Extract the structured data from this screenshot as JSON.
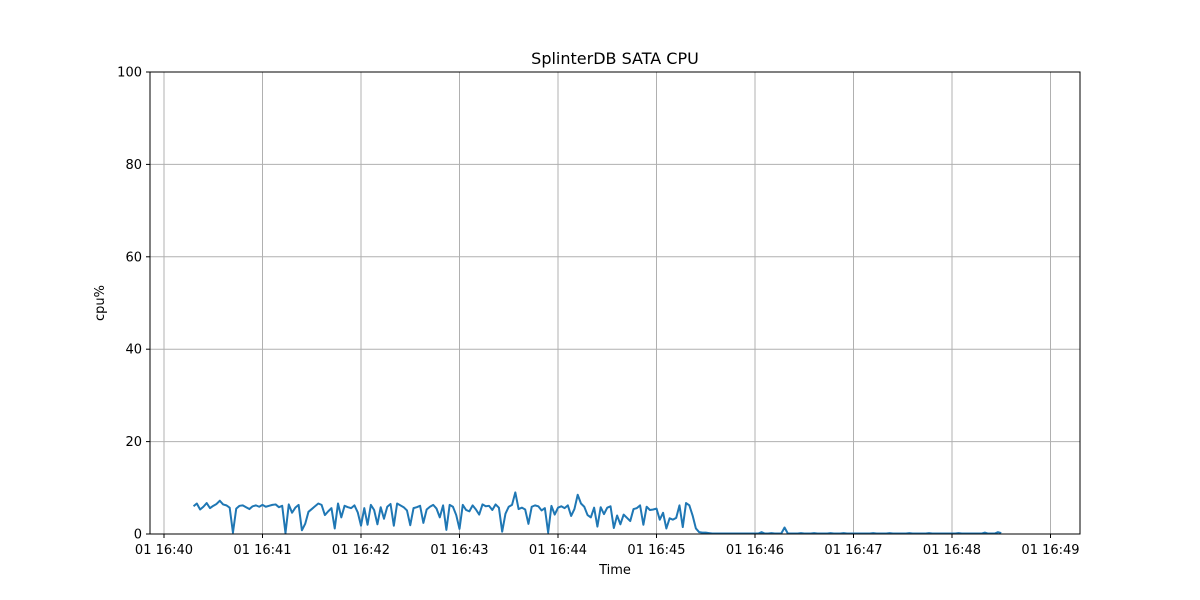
{
  "chart_data": {
    "type": "line",
    "title": "SplinterDB SATA CPU",
    "xlabel": "Time",
    "ylabel": "cpu%",
    "x_ticks": [
      "01 16:40",
      "01 16:41",
      "01 16:42",
      "01 16:43",
      "01 16:44",
      "01 16:45",
      "01 16:46",
      "01 16:47",
      "01 16:48",
      "01 16:49"
    ],
    "y_ticks": [
      "0",
      "20",
      "40",
      "60",
      "80",
      "100"
    ],
    "ylim": [
      0,
      100
    ],
    "grid": true,
    "legend": "none",
    "series": [
      {
        "color": "#1f77b4",
        "x_start": "01 16:40:18",
        "x_interval_seconds": 2,
        "values": [
          6.0,
          6.6,
          5.3,
          5.9,
          6.7,
          5.6,
          6.1,
          6.5,
          7.2,
          6.4,
          6.2,
          5.7,
          0.3,
          5.5,
          6.1,
          6.2,
          5.8,
          5.4,
          6.0,
          6.2,
          5.9,
          6.3,
          5.9,
          6.1,
          6.3,
          6.4,
          5.8,
          6.1,
          0.2,
          6.4,
          4.6,
          5.7,
          6.3,
          0.8,
          2.2,
          4.8,
          5.4,
          6.0,
          6.6,
          6.3,
          4.1,
          4.9,
          5.6,
          1.2,
          6.6,
          3.6,
          6.1,
          5.8,
          5.6,
          6.2,
          4.7,
          1.8,
          5.6,
          2.0,
          6.3,
          5.2,
          2.1,
          5.8,
          3.3,
          5.9,
          6.5,
          1.8,
          6.6,
          6.2,
          5.8,
          5.1,
          1.9,
          5.6,
          5.8,
          6.1,
          2.4,
          5.3,
          5.9,
          6.3,
          5.5,
          3.6,
          6.2,
          0.9,
          6.3,
          5.9,
          4.1,
          1.1,
          6.3,
          5.2,
          4.9,
          6.2,
          5.3,
          4.2,
          6.4,
          6.0,
          6.1,
          5.2,
          6.4,
          5.7,
          0.5,
          4.4,
          5.9,
          6.3,
          9.0,
          5.4,
          5.7,
          5.3,
          2.2,
          5.9,
          6.2,
          6.0,
          5.1,
          5.6,
          0.3,
          6.1,
          4.2,
          5.7,
          6.0,
          5.6,
          6.2,
          3.9,
          5.4,
          8.5,
          6.6,
          5.9,
          4.1,
          3.6,
          5.7,
          1.6,
          5.8,
          4.3,
          5.7,
          6.0,
          1.3,
          4.0,
          2.1,
          4.2,
          3.5,
          2.8,
          5.4,
          5.6,
          6.2,
          2.0,
          5.9,
          5.2,
          5.3,
          5.5,
          3.1,
          4.6,
          1.2,
          3.4,
          3.1,
          3.5,
          6.2,
          1.5,
          6.7,
          6.2,
          4.0,
          1.2,
          0.4,
          0.3,
          0.3,
          0.2,
          0.1,
          0.1,
          0.1,
          0.1,
          0.1,
          0.1,
          0.1,
          0.1,
          0.1,
          0.1,
          0.1,
          0.1,
          0.1,
          0.1,
          0.1,
          0.4,
          0.1,
          0.1,
          0.2,
          0.1,
          0.1,
          0.1,
          1.4,
          0.1,
          0.1,
          0.1,
          0.1,
          0.2,
          0.1,
          0.1,
          0.1,
          0.2,
          0.1,
          0.1,
          0.1,
          0.1,
          0.2,
          0.1,
          0.1,
          0.1,
          0.2,
          0.1,
          0.1,
          0.1,
          0.1,
          0.1,
          0.1,
          0.1,
          0.1,
          0.2,
          0.1,
          0.1,
          0.1,
          0.1,
          0.2,
          0.1,
          0.1,
          0.1,
          0.1,
          0.1,
          0.2,
          0.1,
          0.1,
          0.1,
          0.1,
          0.1,
          0.2,
          0.1,
          0.1,
          0.1,
          0.1,
          0.1,
          0.1,
          0.1,
          0.1,
          0.2,
          0.1,
          0.1,
          0.1,
          0.1,
          0.1,
          0.1,
          0.1,
          0.3,
          0.1,
          0.1,
          0.1,
          0.4,
          0.2
        ]
      }
    ]
  }
}
